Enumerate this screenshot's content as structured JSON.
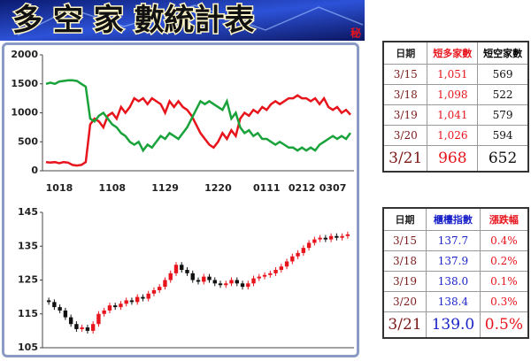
{
  "banner": {
    "title": "多 空 家 數統計表",
    "mark": "秘"
  },
  "chart_data": [
    {
      "type": "line",
      "ylim": [
        0,
        2000
      ],
      "yticks": [
        0,
        500,
        1000,
        1500,
        2000
      ],
      "grid": false,
      "categories": [
        null,
        null,
        null,
        "1018",
        null,
        null,
        null,
        null,
        null,
        null,
        null,
        null,
        null,
        null,
        null,
        "1108",
        null,
        null,
        null,
        null,
        null,
        null,
        null,
        null,
        null,
        null,
        null,
        "1129",
        null,
        null,
        null,
        null,
        null,
        null,
        null,
        null,
        null,
        null,
        null,
        "1220",
        null,
        null,
        null,
        null,
        null,
        null,
        null,
        null,
        null,
        null,
        "0111",
        null,
        null,
        null,
        null,
        null,
        null,
        null,
        "0212",
        null,
        null,
        null,
        null,
        null,
        null,
        "0307",
        null,
        null,
        null,
        null
      ],
      "series": [
        {
          "name": "短多家數",
          "color": "#e8141c",
          "values": [
            150,
            140,
            150,
            130,
            150,
            140,
            100,
            90,
            100,
            150,
            800,
            900,
            850,
            750,
            950,
            1000,
            900,
            1100,
            1000,
            1100,
            1250,
            1200,
            1250,
            1150,
            1250,
            1200,
            1150,
            1000,
            1200,
            1100,
            1200,
            1100,
            1050,
            950,
            800,
            650,
            550,
            450,
            400,
            500,
            650,
            550,
            700,
            600,
            900,
            1000,
            950,
            1050,
            1000,
            1100,
            1050,
            1150,
            1200,
            1150,
            1200,
            1250,
            1250,
            1300,
            1250,
            1250,
            1200,
            1250,
            1150,
            1250,
            1100,
            1050,
            1100,
            1000,
            1050,
            968
          ]
        },
        {
          "name": "短空家數",
          "color": "#1aa33a",
          "values": [
            1500,
            1520,
            1500,
            1540,
            1550,
            1560,
            1560,
            1550,
            1500,
            1450,
            900,
            850,
            950,
            1000,
            900,
            800,
            750,
            650,
            600,
            500,
            450,
            500,
            350,
            450,
            400,
            500,
            600,
            550,
            650,
            600,
            550,
            650,
            750,
            900,
            1050,
            1200,
            1150,
            1200,
            1150,
            1100,
            1050,
            1200,
            900,
            1000,
            750,
            650,
            700,
            600,
            650,
            550,
            550,
            500,
            450,
            500,
            450,
            400,
            400,
            350,
            400,
            350,
            400,
            350,
            450,
            500,
            550,
            600,
            550,
            600,
            550,
            652
          ]
        }
      ]
    },
    {
      "type": "candlestick",
      "ylim": [
        105,
        145
      ],
      "yticks": [
        105,
        115,
        125,
        135,
        145
      ],
      "grid": false,
      "up_color": "#e8141c",
      "down_color": "#111111",
      "open": [
        119,
        118.5,
        117,
        116,
        114,
        112,
        110.5,
        111,
        110,
        112,
        115,
        116,
        117.5,
        117,
        118,
        119,
        118.5,
        120,
        119.5,
        121,
        122,
        123,
        125,
        127,
        129.5,
        128,
        127,
        125,
        124.5,
        126,
        125,
        124,
        123.5,
        124,
        125,
        124,
        123,
        124,
        125.5,
        126,
        126.5,
        127,
        128,
        129,
        130.5,
        132,
        133,
        134.5,
        136,
        137,
        137.5,
        137,
        138,
        137.5,
        138
      ],
      "high": [
        119.8,
        119.3,
        117.8,
        116.8,
        114.8,
        112.8,
        111.8,
        111.8,
        112.8,
        115.8,
        116.8,
        118.3,
        118.3,
        118.8,
        119.8,
        119.8,
        120.8,
        120.8,
        121.8,
        122.8,
        123.8,
        125.8,
        127.8,
        130.3,
        130.3,
        128.8,
        127.8,
        125.8,
        126.8,
        126.8,
        125.8,
        124.8,
        124.8,
        125.8,
        125.8,
        124.8,
        124.8,
        126.3,
        126.8,
        127.3,
        127.8,
        128.8,
        129.8,
        131.3,
        132.8,
        133.8,
        135.3,
        136.8,
        137.8,
        138.3,
        138.3,
        138.8,
        138.8,
        138.8,
        139.3
      ],
      "low": [
        117.7,
        116.2,
        115.2,
        113.2,
        111.2,
        109.7,
        109.7,
        109.2,
        109.2,
        111.2,
        114.2,
        115.2,
        116.2,
        116.2,
        117.2,
        117.7,
        117.7,
        118.7,
        118.7,
        120.2,
        121.2,
        122.2,
        124.2,
        126.2,
        127.2,
        126.2,
        124.2,
        123.7,
        123.7,
        124.2,
        123.2,
        122.7,
        122.7,
        123.2,
        123.2,
        122.2,
        122.2,
        123.2,
        124.7,
        125.2,
        125.7,
        126.2,
        127.2,
        128.2,
        129.7,
        131.2,
        132.2,
        133.7,
        135.2,
        136.2,
        136.2,
        136.2,
        136.7,
        136.7,
        137.2
      ],
      "close": [
        118.5,
        117,
        116,
        114,
        112,
        110.5,
        111,
        110,
        112,
        115,
        116,
        117.5,
        117,
        118,
        119,
        118.5,
        120,
        119.5,
        121,
        122,
        123,
        125,
        127,
        129.5,
        128,
        127,
        125,
        124.5,
        126,
        125,
        124,
        123.5,
        124,
        125,
        124,
        123,
        124,
        125.5,
        126,
        126.5,
        127,
        128,
        129,
        130.5,
        132,
        133,
        134.5,
        136,
        137,
        137.5,
        137,
        138,
        137.5,
        138,
        138.5
      ]
    }
  ],
  "tables": [
    {
      "header": [
        "日期",
        "短多家數",
        "短空家數"
      ],
      "rows": [
        [
          "3/15",
          "1,051",
          "569"
        ],
        [
          "3/18",
          "1,098",
          "522"
        ],
        [
          "3/19",
          "1,041",
          "579"
        ],
        [
          "3/20",
          "1,026",
          "594"
        ],
        [
          "3/21",
          "968",
          "652"
        ]
      ]
    },
    {
      "header": [
        "日期",
        "櫃檯指數",
        "漲跌幅"
      ],
      "rows": [
        [
          "3/15",
          "137.7",
          "0.4%"
        ],
        [
          "3/18",
          "137.9",
          "0.2%"
        ],
        [
          "3/19",
          "138.0",
          "0.1%"
        ],
        [
          "3/20",
          "138.4",
          "0.3%"
        ],
        [
          "3/21",
          "139.0",
          "0.5%"
        ]
      ]
    }
  ]
}
